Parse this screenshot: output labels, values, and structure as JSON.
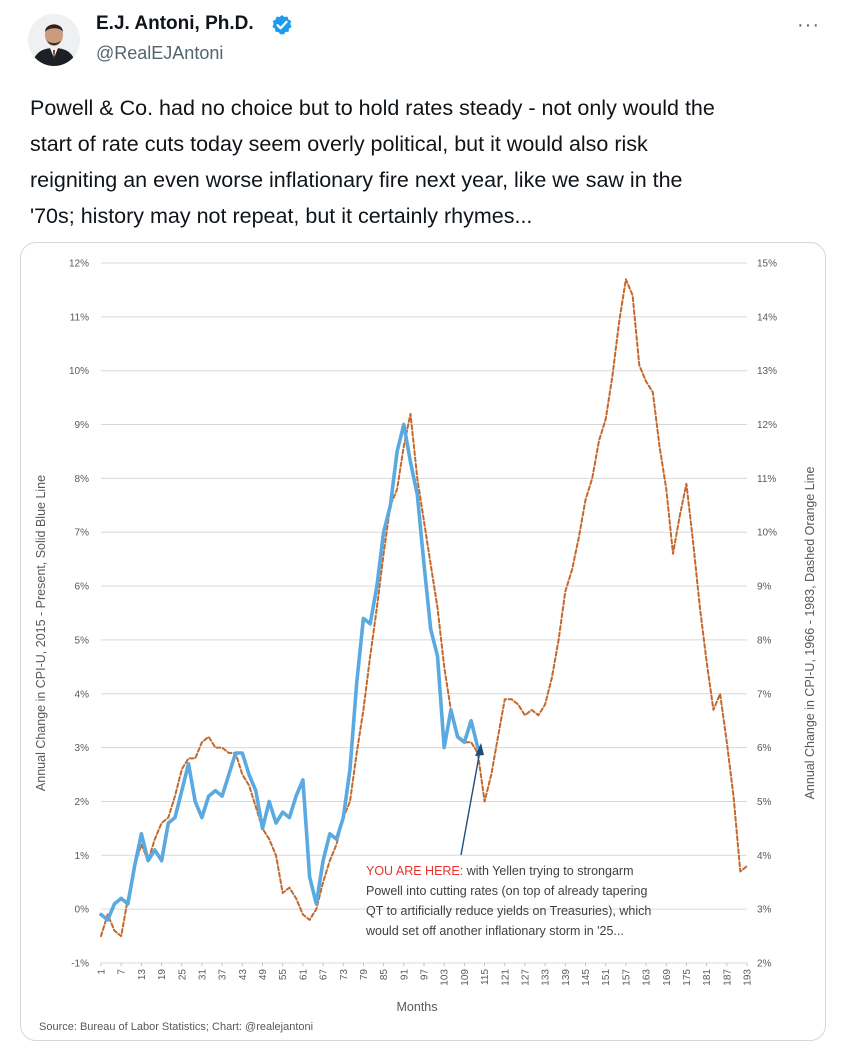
{
  "tweet": {
    "author_name": "E.J. Antoni, Ph.D.",
    "handle": "@RealEJAntoni",
    "more_icon": "···",
    "text_lines": [
      "Powell & Co. had no choice but to hold rates steady - not only would the",
      "start of rate cuts today seem overly political, but it would also risk",
      "reigniting an even worse inflationary fire next year, like we saw in the",
      "'70s; history may not repeat, but it certainly rhymes..."
    ]
  },
  "colors": {
    "blue_series": "#5aa9e0",
    "orange_series": "#c4692c",
    "verified": "#1d9bf0",
    "annotation_red": "#e8312f"
  },
  "chart_data": {
    "type": "line",
    "xlabel": "Months",
    "ylabel": "Annual Change in CPI-U, 2015 - Present, Solid Blue Line",
    "ylabel_right": "Annual Change in CPI-U, 1966 - 1983, Dashed Orange Line",
    "source": "Source: Bureau of Labor Statistics; Chart: @realejantoni",
    "y_left_ticks": [
      "-1%",
      "0%",
      "1%",
      "2%",
      "3%",
      "4%",
      "5%",
      "6%",
      "7%",
      "8%",
      "9%",
      "10%",
      "11%",
      "12%"
    ],
    "y_right_ticks": [
      "2%",
      "3%",
      "4%",
      "5%",
      "6%",
      "7%",
      "8%",
      "9%",
      "10%",
      "11%",
      "12%",
      "13%",
      "14%",
      "15%"
    ],
    "ylim_left": [
      -1,
      12
    ],
    "ylim_right": [
      2,
      15
    ],
    "x_ticks": [
      "1",
      "7",
      "13",
      "19",
      "25",
      "31",
      "37",
      "43",
      "49",
      "55",
      "61",
      "67",
      "73",
      "79",
      "85",
      "91",
      "97",
      "103",
      "109",
      "115",
      "121",
      "127",
      "133",
      "139",
      "145",
      "151",
      "157",
      "163",
      "169",
      "175",
      "181",
      "187",
      "193"
    ],
    "xlim": [
      1,
      193
    ],
    "annotation": {
      "highlight": "YOU ARE HERE:",
      "lines": [
        " with Yellen trying to strongarm",
        "Powell into cutting rates (on top of already tapering",
        "QT to artificially reduce yields on Treasuries), which",
        "would set off another inflationary storm in '25..."
      ]
    },
    "series": [
      {
        "name": "Solid Blue Line",
        "axis": "left",
        "x": [
          1,
          3,
          5,
          7,
          9,
          11,
          13,
          15,
          17,
          19,
          21,
          23,
          25,
          27,
          29,
          31,
          33,
          35,
          37,
          39,
          41,
          43,
          45,
          47,
          49,
          51,
          53,
          55,
          57,
          59,
          61,
          63,
          65,
          67,
          69,
          71,
          73,
          75,
          77,
          79,
          81,
          83,
          85,
          87,
          89,
          91,
          93,
          95,
          97,
          99,
          101,
          103,
          105,
          107,
          109,
          111,
          113
        ],
        "values": [
          -0.1,
          -0.2,
          0.1,
          0.2,
          0.1,
          0.8,
          1.4,
          0.9,
          1.1,
          0.9,
          1.6,
          1.7,
          2.2,
          2.7,
          2.0,
          1.7,
          2.1,
          2.2,
          2.1,
          2.5,
          2.9,
          2.9,
          2.5,
          2.2,
          1.5,
          2.0,
          1.6,
          1.8,
          1.7,
          2.1,
          2.4,
          0.6,
          0.1,
          0.9,
          1.4,
          1.3,
          1.7,
          2.6,
          4.2,
          5.4,
          5.3,
          6.0,
          7.0,
          7.5,
          8.5,
          9.0,
          8.3,
          7.7,
          6.4,
          5.2,
          4.7,
          3.0,
          3.7,
          3.2,
          3.1,
          3.5,
          3.0
        ]
      },
      {
        "name": "Dashed Orange Line",
        "axis": "right",
        "x": [
          1,
          3,
          5,
          7,
          9,
          11,
          13,
          15,
          17,
          19,
          21,
          23,
          25,
          27,
          29,
          31,
          33,
          35,
          37,
          39,
          41,
          43,
          45,
          47,
          49,
          51,
          53,
          55,
          57,
          59,
          61,
          63,
          65,
          67,
          69,
          71,
          73,
          75,
          77,
          79,
          81,
          83,
          85,
          87,
          89,
          91,
          93,
          95,
          97,
          99,
          101,
          103,
          105,
          107,
          109,
          111,
          113,
          115,
          117,
          119,
          121,
          123,
          125,
          127,
          129,
          131,
          133,
          135,
          137,
          139,
          141,
          143,
          145,
          147,
          149,
          151,
          153,
          155,
          157,
          159,
          161,
          163,
          165,
          167,
          169,
          171,
          173,
          175,
          177,
          179,
          181,
          183,
          185,
          187,
          189,
          191,
          193
        ],
        "values": [
          2.5,
          2.9,
          2.6,
          2.5,
          3.2,
          3.8,
          4.2,
          3.9,
          4.3,
          4.6,
          4.7,
          5.1,
          5.6,
          5.8,
          5.8,
          6.1,
          6.2,
          6.0,
          6.0,
          5.9,
          5.9,
          5.5,
          5.3,
          4.9,
          4.5,
          4.3,
          4.0,
          3.3,
          3.4,
          3.2,
          2.9,
          2.8,
          3.0,
          3.5,
          3.9,
          4.2,
          4.7,
          5.0,
          5.9,
          6.7,
          7.7,
          8.6,
          9.6,
          10.5,
          10.8,
          11.6,
          12.2,
          11.0,
          10.2,
          9.4,
          8.6,
          7.5,
          6.7,
          6.2,
          6.1,
          6.1,
          5.9,
          5.0,
          5.5,
          6.2,
          6.9,
          6.9,
          6.8,
          6.6,
          6.7,
          6.6,
          6.8,
          7.3,
          8.0,
          8.9,
          9.3,
          9.9,
          10.6,
          11.0,
          11.7,
          12.1,
          12.9,
          13.9,
          14.7,
          14.4,
          13.1,
          12.8,
          12.6,
          11.6,
          10.8,
          9.6,
          10.3,
          10.9,
          9.8,
          8.6,
          7.6,
          6.7,
          7.0,
          6.1,
          5.1,
          3.7,
          3.8
        ]
      }
    ]
  }
}
